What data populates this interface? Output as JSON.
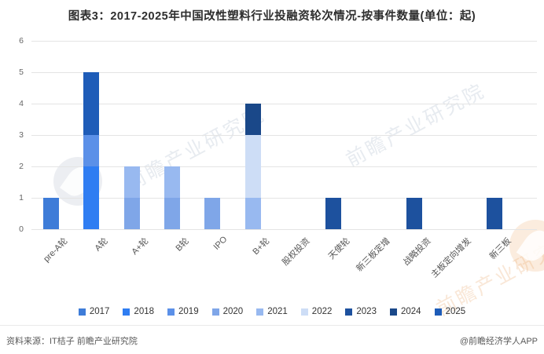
{
  "header": {
    "title": "图表3：2017-2025年中国改性塑料行业投融资轮次情况-按事件数量(单位：起)"
  },
  "chart_data": {
    "type": "bar",
    "stacked": true,
    "title": "图表3：2017-2025年中国改性塑料行业投融资轮次情况-按事件数量(单位：起)",
    "unit": "起",
    "xlabel": "",
    "ylabel": "",
    "ylim": [
      0,
      6
    ],
    "ytick_interval": 1,
    "grid": true,
    "legend_position": "bottom",
    "categories": [
      "pre-A轮",
      "A轮",
      "A+轮",
      "B轮",
      "IPO",
      "B+轮",
      "股权投资",
      "天使轮",
      "新三板定增",
      "战略投资",
      "主板定向增发",
      "新三板"
    ],
    "series": [
      {
        "name": "2017",
        "color": "#3E7CD8",
        "values": [
          1,
          0,
          0,
          0,
          0,
          0,
          0,
          0,
          0,
          0,
          0,
          0
        ]
      },
      {
        "name": "2018",
        "color": "#2F7DF2",
        "values": [
          0,
          2,
          0,
          0,
          0,
          0,
          0,
          0,
          0,
          0,
          0,
          0
        ]
      },
      {
        "name": "2019",
        "color": "#5B90E8",
        "values": [
          0,
          1,
          0,
          0,
          0,
          0,
          0,
          0,
          0,
          0,
          0,
          0
        ]
      },
      {
        "name": "2020",
        "color": "#7FA6E8",
        "values": [
          0,
          0,
          1,
          1,
          1,
          0,
          0,
          0,
          0,
          0,
          0,
          0
        ]
      },
      {
        "name": "2021",
        "color": "#98B9F0",
        "values": [
          0,
          0,
          1,
          1,
          0,
          1,
          0,
          0,
          0,
          0,
          0,
          0
        ]
      },
      {
        "name": "2022",
        "color": "#CDDDF6",
        "values": [
          0,
          0,
          0,
          0,
          0,
          2,
          0,
          0,
          0,
          0,
          0,
          0
        ]
      },
      {
        "name": "2023",
        "color": "#1D519E",
        "values": [
          0,
          0,
          0,
          0,
          0,
          0,
          0,
          1,
          0,
          1,
          0,
          1
        ]
      },
      {
        "name": "2024",
        "color": "#1A4889",
        "values": [
          0,
          0,
          0,
          0,
          0,
          1,
          0,
          0,
          0,
          0,
          0,
          0
        ]
      },
      {
        "name": "2025",
        "color": "#1E5CB8",
        "values": [
          0,
          2,
          0,
          0,
          0,
          0,
          0,
          0,
          0,
          0,
          0,
          0
        ]
      }
    ]
  },
  "watermark": {
    "text": "前瞻产业研究院"
  },
  "footer": {
    "source": "资料来源：IT桔子 前瞻产业研究院",
    "credit": "@前瞻经济学人APP"
  }
}
